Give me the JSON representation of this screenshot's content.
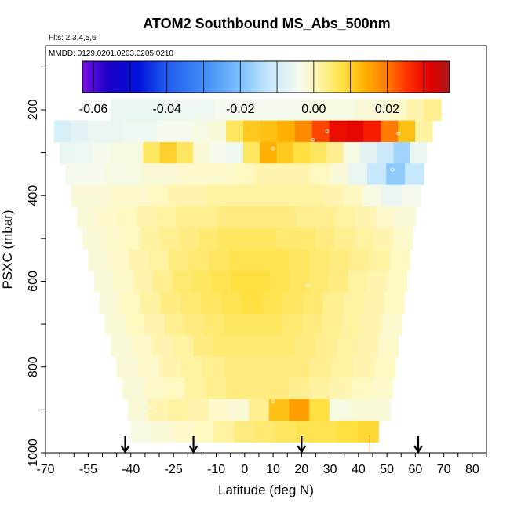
{
  "chart_data": {
    "type": "heatmap",
    "title": "ATOM2 Southbound MS_Abs_500nm",
    "flights_label": "Flts: 2,3,4,5,6",
    "dates_label": "MMDD: 0129,0201,0203,0205,0210",
    "xlabel": "Latitude (deg N)",
    "ylabel": "PSXC (mbar)",
    "xlim": [
      -70,
      85
    ],
    "ylim": [
      1000,
      50
    ],
    "x_ticks": [
      -70,
      -55,
      -40,
      -25,
      -10,
      0,
      10,
      20,
      30,
      40,
      50,
      60,
      70,
      80
    ],
    "y_ticks": [
      200,
      400,
      600,
      800,
      1000
    ],
    "colorbar": {
      "range": [
        -0.063,
        0.037
      ],
      "ticks": [
        -0.06,
        -0.04,
        -0.02,
        0.0,
        0.02
      ],
      "tick_labels": [
        "-0.06",
        "-0.04",
        "-0.02",
        "0.00",
        "0.02"
      ],
      "stops": [
        {
          "v": -0.063,
          "c": "#7a0fe0"
        },
        {
          "v": -0.056,
          "c": "#1a00c8"
        },
        {
          "v": -0.048,
          "c": "#0010d8"
        },
        {
          "v": -0.04,
          "c": "#1f5cf0"
        },
        {
          "v": -0.03,
          "c": "#3f8cf5"
        },
        {
          "v": -0.02,
          "c": "#7cc0fb"
        },
        {
          "v": -0.012,
          "c": "#c6e8fd"
        },
        {
          "v": -0.004,
          "c": "#f4faee"
        },
        {
          "v": 0.0,
          "c": "#fff8c0"
        },
        {
          "v": 0.008,
          "c": "#ffe040"
        },
        {
          "v": 0.014,
          "c": "#ffb000"
        },
        {
          "v": 0.02,
          "c": "#ff7a00"
        },
        {
          "v": 0.026,
          "c": "#ff2a00"
        },
        {
          "v": 0.032,
          "c": "#e00000"
        },
        {
          "v": 0.037,
          "c": "#a81818"
        }
      ]
    },
    "levels": [
      {
        "p": 200,
        "lat_min": -47,
        "lat_max": 69,
        "values": [
          -0.006,
          -0.006,
          -0.006,
          -0.005,
          -0.005,
          -0.005,
          -0.004,
          -0.004,
          -0.004,
          -0.004,
          -0.004,
          -0.003,
          -0.003,
          -0.003,
          -0.002,
          -0.002,
          -0.001,
          0.001,
          0.003
        ]
      },
      {
        "p": 250,
        "lat_min": -67,
        "lat_max": 66,
        "values": [
          -0.009,
          -0.007,
          -0.006,
          -0.006,
          -0.005,
          -0.005,
          -0.004,
          -0.004,
          -0.003,
          -0.002,
          0.006,
          0.011,
          0.012,
          0.014,
          0.018,
          0.024,
          0.03,
          0.031,
          0.028,
          0.02,
          0.012,
          0.002
        ]
      },
      {
        "p": 300,
        "lat_min": -65,
        "lat_max": 64,
        "values": [
          -0.006,
          -0.005,
          -0.004,
          -0.003,
          -0.003,
          0.006,
          0.01,
          0.006,
          -0.002,
          -0.004,
          -0.005,
          0.006,
          0.014,
          0.011,
          0.008,
          0.006,
          0.003,
          -0.003,
          -0.007,
          -0.011,
          -0.016,
          -0.006
        ]
      },
      {
        "p": 350,
        "lat_min": -63,
        "lat_max": 63,
        "values": [
          -0.004,
          -0.004,
          -0.003,
          -0.003,
          -0.002,
          -0.002,
          -0.001,
          -0.001,
          -0.001,
          0.0,
          0.001,
          0.001,
          0.001,
          0.0,
          -0.002,
          -0.006,
          -0.012,
          -0.018,
          -0.012
        ]
      },
      {
        "p": 400,
        "lat_min": -61,
        "lat_max": 62,
        "values": [
          -0.002,
          -0.002,
          -0.001,
          -0.001,
          0.0,
          0.001,
          0.001,
          0.002,
          0.002,
          0.002,
          0.002,
          0.002,
          0.002,
          0.001,
          0.0,
          -0.003,
          -0.006,
          -0.004
        ]
      },
      {
        "p": 450,
        "lat_min": -59,
        "lat_max": 60,
        "values": [
          -0.002,
          -0.001,
          0.0,
          0.001,
          0.002,
          0.003,
          0.003,
          0.004,
          0.004,
          0.004,
          0.004,
          0.003,
          0.003,
          0.002,
          0.001,
          -0.001,
          -0.002
        ]
      },
      {
        "p": 500,
        "lat_min": -57,
        "lat_max": 59,
        "values": [
          -0.002,
          -0.001,
          0.0,
          0.002,
          0.003,
          0.004,
          0.005,
          0.006,
          0.006,
          0.006,
          0.005,
          0.005,
          0.004,
          0.003,
          0.002,
          0.001,
          -0.001
        ]
      },
      {
        "p": 550,
        "lat_min": -55,
        "lat_max": 58,
        "values": [
          -0.002,
          -0.001,
          0.001,
          0.002,
          0.004,
          0.005,
          0.006,
          0.007,
          0.007,
          0.007,
          0.006,
          0.005,
          0.004,
          0.003,
          0.002,
          0.0
        ]
      },
      {
        "p": 600,
        "lat_min": -53,
        "lat_max": 57,
        "values": [
          -0.002,
          -0.001,
          0.001,
          0.003,
          0.005,
          0.006,
          0.007,
          0.008,
          0.008,
          0.007,
          0.006,
          0.005,
          0.004,
          0.002,
          0.001,
          0.0
        ]
      },
      {
        "p": 650,
        "lat_min": -51,
        "lat_max": 56,
        "values": [
          -0.002,
          0.0,
          0.002,
          0.004,
          0.005,
          0.006,
          0.007,
          0.008,
          0.007,
          0.006,
          0.005,
          0.003,
          0.002,
          0.001,
          0.0
        ]
      },
      {
        "p": 700,
        "lat_min": -49,
        "lat_max": 55,
        "values": [
          -0.002,
          0.0,
          0.001,
          0.003,
          0.004,
          0.005,
          0.006,
          0.006,
          0.006,
          0.005,
          0.004,
          0.003,
          0.002,
          0.001,
          -0.001
        ]
      },
      {
        "p": 750,
        "lat_min": -47,
        "lat_max": 54,
        "values": [
          -0.002,
          -0.001,
          0.001,
          0.002,
          0.004,
          0.005,
          0.005,
          0.005,
          0.005,
          0.004,
          0.003,
          0.002,
          0.001,
          -0.001
        ]
      },
      {
        "p": 800,
        "lat_min": -45,
        "lat_max": 53,
        "values": [
          -0.002,
          -0.001,
          0.001,
          0.002,
          0.003,
          0.004,
          0.004,
          0.004,
          0.004,
          0.003,
          0.002,
          0.001,
          0.0
        ]
      },
      {
        "p": 850,
        "lat_min": -43,
        "lat_max": 52,
        "values": [
          -0.002,
          -0.001,
          0.0,
          0.002,
          0.003,
          0.004,
          0.004,
          0.004,
          0.003,
          0.002,
          0.001,
          0.0,
          -0.001
        ]
      },
      {
        "p": 900,
        "lat_min": -41,
        "lat_max": 51,
        "values": [
          -0.002,
          0.001,
          0.002,
          0.001,
          -0.001,
          -0.002,
          0.003,
          0.012,
          0.016,
          0.008,
          -0.003,
          -0.002,
          -0.002
        ]
      },
      {
        "p": 950,
        "lat_min": -40,
        "lat_max": 47,
        "values": [
          -0.003,
          -0.002,
          -0.001,
          0.0,
          0.002,
          0.004,
          0.005,
          0.006,
          0.007,
          0.007,
          0.008,
          0.009
        ]
      }
    ],
    "markers": [
      {
        "lat": 29,
        "p": 250
      },
      {
        "lat": 54,
        "p": 255
      },
      {
        "lat": -37,
        "p": 270
      },
      {
        "lat": 24,
        "p": 270
      },
      {
        "lat": 10,
        "p": 290
      },
      {
        "lat": 52,
        "p": 340
      },
      {
        "lat": 22,
        "p": 610
      },
      {
        "lat": 10,
        "p": 880
      },
      {
        "lat": -33,
        "p": 895
      }
    ],
    "arrows_lat": [
      -42,
      -18,
      20,
      61
    ],
    "orange_tick_lat": 44
  }
}
